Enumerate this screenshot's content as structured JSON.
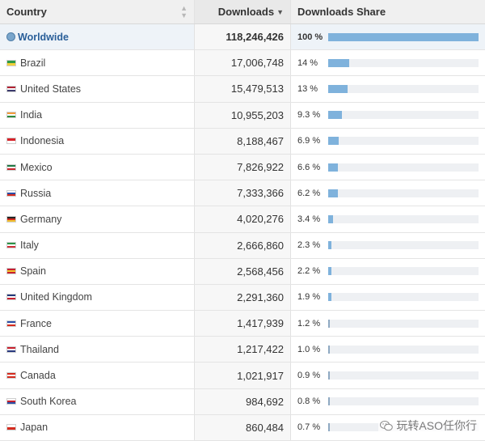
{
  "header": {
    "country": "Country",
    "downloads": "Downloads",
    "share": "Downloads Share"
  },
  "rows": [
    {
      "country": "Worldwide",
      "downloads": "118,246,426",
      "share": "100 %",
      "share_fraction": 1.0,
      "flag": "globe-icon",
      "flag_colors": [
        "#7aa6cc"
      ]
    },
    {
      "country": "Brazil",
      "downloads": "17,006,748",
      "share": "14 %",
      "share_fraction": 0.14,
      "flag": "brazil-flag-icon",
      "flag_colors": [
        "#2e9a45",
        "#f2d13a"
      ]
    },
    {
      "country": "United States",
      "downloads": "15,479,513",
      "share": "13 %",
      "share_fraction": 0.13,
      "flag": "united-states-flag-icon",
      "flag_colors": [
        "#b22234",
        "#ffffff",
        "#3c3b6e"
      ]
    },
    {
      "country": "India",
      "downloads": "10,955,203",
      "share": "9.3 %",
      "share_fraction": 0.093,
      "flag": "india-flag-icon",
      "flag_colors": [
        "#f49a3a",
        "#ffffff",
        "#2e8b3e"
      ]
    },
    {
      "country": "Indonesia",
      "downloads": "8,188,467",
      "share": "6.9 %",
      "share_fraction": 0.069,
      "flag": "indonesia-flag-icon",
      "flag_colors": [
        "#d8232a",
        "#ffffff"
      ]
    },
    {
      "country": "Mexico",
      "downloads": "7,826,922",
      "share": "6.6 %",
      "share_fraction": 0.066,
      "flag": "mexico-flag-icon",
      "flag_colors": [
        "#1f7a44",
        "#ffffff",
        "#c8262f"
      ]
    },
    {
      "country": "Russia",
      "downloads": "7,333,366",
      "share": "6.2 %",
      "share_fraction": 0.062,
      "flag": "russia-flag-icon",
      "flag_colors": [
        "#ffffff",
        "#2a4fa8",
        "#d52b1e"
      ]
    },
    {
      "country": "Germany",
      "downloads": "4,020,276",
      "share": "3.4 %",
      "share_fraction": 0.034,
      "flag": "germany-flag-icon",
      "flag_colors": [
        "#222222",
        "#d52b1e",
        "#f2c230"
      ]
    },
    {
      "country": "Italy",
      "downloads": "2,666,860",
      "share": "2.3 %",
      "share_fraction": 0.023,
      "flag": "italy-flag-icon",
      "flag_colors": [
        "#2b9447",
        "#ffffff",
        "#d0303a"
      ]
    },
    {
      "country": "Spain",
      "downloads": "2,568,456",
      "share": "2.2 %",
      "share_fraction": 0.022,
      "flag": "spain-flag-icon",
      "flag_colors": [
        "#c8202e",
        "#f2c52e",
        "#c8202e"
      ]
    },
    {
      "country": "United Kingdom",
      "downloads": "2,291,360",
      "share": "1.9 %",
      "share_fraction": 0.019,
      "flag": "united-kingdom-flag-icon",
      "flag_colors": [
        "#23397a",
        "#ffffff",
        "#c8202e"
      ]
    },
    {
      "country": "France",
      "downloads": "1,417,939",
      "share": "1.2 %",
      "share_fraction": 0.012,
      "flag": "france-flag-icon",
      "flag_colors": [
        "#2a4fa8",
        "#ffffff",
        "#d52b1e"
      ]
    },
    {
      "country": "Thailand",
      "downloads": "1,217,422",
      "share": "1.0 %",
      "share_fraction": 0.01,
      "flag": "thailand-flag-icon",
      "flag_colors": [
        "#c8202e",
        "#ffffff",
        "#2a3a80"
      ]
    },
    {
      "country": "Canada",
      "downloads": "1,021,917",
      "share": "0.9 %",
      "share_fraction": 0.009,
      "flag": "canada-flag-icon",
      "flag_colors": [
        "#d52b1e",
        "#ffffff",
        "#d52b1e"
      ]
    },
    {
      "country": "South Korea",
      "downloads": "984,692",
      "share": "0.8 %",
      "share_fraction": 0.008,
      "flag": "south-korea-flag-icon",
      "flag_colors": [
        "#ffffff",
        "#c8202e",
        "#2a4fa8"
      ]
    },
    {
      "country": "Japan",
      "downloads": "860,484",
      "share": "0.7 %",
      "share_fraction": 0.007,
      "flag": "japan-flag-icon",
      "flag_colors": [
        "#ffffff",
        "#d52b1e"
      ]
    }
  ],
  "watermark": {
    "text": "玩转ASO任你行",
    "icon": "wechat-icon"
  },
  "colors": {
    "bar_fill": "#7fb2dc",
    "bar_track": "#eef0f3",
    "worldwide_text": "#2a5f99"
  }
}
